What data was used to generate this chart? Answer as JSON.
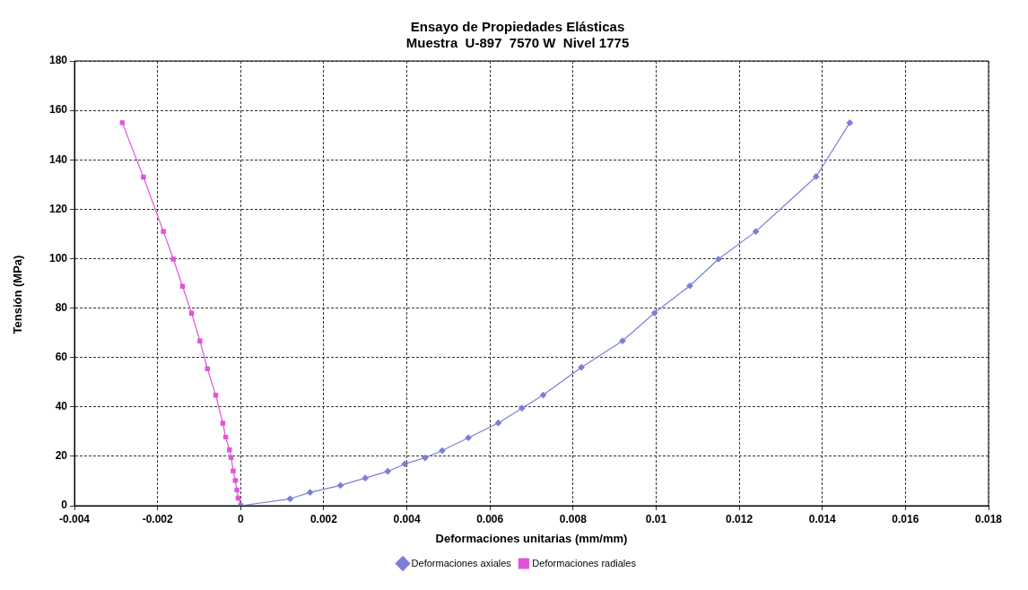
{
  "chart_data": {
    "type": "line",
    "title": "Ensayo de Propiedades Elásticas",
    "subtitle": "Muestra  U-897  7570 W  Nivel 1775",
    "xlabel": "Deformaciones unitarias (mm/mm)",
    "ylabel": "Tensión (MPa)",
    "xlim": [
      -0.004,
      0.018
    ],
    "xticks": [
      -0.004,
      -0.002,
      0,
      0.002,
      0.004,
      0.006,
      0.008,
      0.01,
      0.012,
      0.014,
      0.016,
      0.018
    ],
    "ylim": [
      0,
      180
    ],
    "yticks": [
      0,
      20,
      40,
      60,
      80,
      100,
      120,
      140,
      160,
      180
    ],
    "grid": true,
    "legend": "bottom",
    "series": [
      {
        "name": "Deformaciones axiales",
        "color": "#7b7fd6",
        "marker": "diamond",
        "x": [
          0,
          0.00119,
          0.00167,
          0.0024,
          0.003,
          0.00354,
          0.00395,
          0.00444,
          0.00485,
          0.00548,
          0.0062,
          0.00677,
          0.00728,
          0.0082,
          0.00919,
          0.00996,
          0.01081,
          0.0115,
          0.0124,
          0.01385,
          0.01466
        ],
        "values": [
          0,
          2.8,
          5.4,
          8.2,
          11.2,
          13.9,
          16.9,
          19.4,
          22.3,
          27.5,
          33.5,
          39.5,
          44.8,
          56,
          66.7,
          78,
          89,
          99.8,
          111,
          133.2,
          155
        ]
      },
      {
        "name": "Deformaciones radiales",
        "color": "#e055d8",
        "marker": "square",
        "x": [
          0,
          -6e-05,
          -9e-05,
          -0.00013,
          -0.00018,
          -0.00023,
          -0.00027,
          -0.00036,
          -0.00043,
          -0.0006,
          -0.0008,
          -0.00098,
          -0.00118,
          -0.0014,
          -0.00162,
          -0.00186,
          -0.00234,
          -0.00285
        ],
        "values": [
          0,
          3.1,
          6.4,
          10.2,
          14.1,
          19.5,
          22.6,
          27.8,
          33.4,
          44.7,
          55.4,
          66.7,
          77.9,
          88.8,
          99.8,
          111,
          133,
          155
        ]
      }
    ]
  }
}
